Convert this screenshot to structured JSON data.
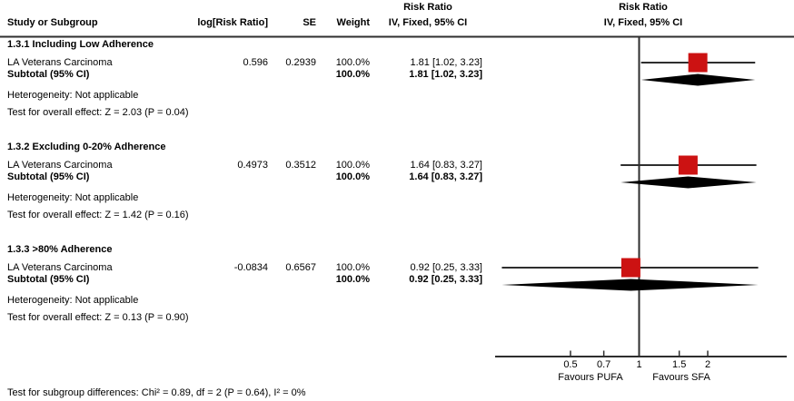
{
  "colors": {
    "marker": "#CC1212",
    "line": "#2E2E2E",
    "text": "#000000"
  },
  "header": {
    "study": "Study or Subgroup",
    "log_rr": "log[Risk Ratio]",
    "se": "SE",
    "weight": "Weight",
    "effect_col_title_line1": "Risk Ratio",
    "effect_col_title_line2": "IV, Fixed, 95% CI",
    "plot_col_title_line1": "Risk Ratio",
    "plot_col_title_line2": "IV, Fixed, 95% CI"
  },
  "sections": [
    {
      "heading": "1.3.1 Including Low Adherence",
      "study": {
        "name": "LA Veterans Carcinoma",
        "log_rr": "0.596",
        "se": "0.2939",
        "weight": "100.0%",
        "ci": "1.81 [1.02, 3.23]"
      },
      "subtotal": {
        "label": "Subtotal (95% CI)",
        "weight": "100.0%",
        "ci": "1.81 [1.02, 3.23]"
      },
      "heterogeneity": "Heterogeneity: Not applicable",
      "overall_effect": "Test for overall effect: Z = 2.03 (P = 0.04)"
    },
    {
      "heading": "1.3.2 Excluding 0-20% Adherence",
      "study": {
        "name": "LA Veterans Carcinoma",
        "log_rr": "0.4973",
        "se": "0.3512",
        "weight": "100.0%",
        "ci": "1.64 [0.83, 3.27]"
      },
      "subtotal": {
        "label": "Subtotal (95% CI)",
        "weight": "100.0%",
        "ci": "1.64 [0.83, 3.27]"
      },
      "heterogeneity": "Heterogeneity: Not applicable",
      "overall_effect": "Test for overall effect: Z = 1.42 (P = 0.16)"
    },
    {
      "heading": "1.3.3 >80% Adherence",
      "study": {
        "name": "LA Veterans Carcinoma",
        "log_rr": "-0.0834",
        "se": "0.6567",
        "weight": "100.0%",
        "ci": "0.92 [0.25, 3.33]"
      },
      "subtotal": {
        "label": "Subtotal (95% CI)",
        "weight": "100.0%",
        "ci": "0.92 [0.25, 3.33]"
      },
      "heterogeneity": "Heterogeneity: Not applicable",
      "overall_effect": "Test for overall effect: Z = 0.13 (P = 0.90)"
    }
  ],
  "footnote": "Test for subgroup differences: Chi² = 0.89, df = 2 (P = 0.64), I² = 0%",
  "axis": {
    "tick_labels": [
      "0.5",
      "0.7",
      "1",
      "1.5",
      "2"
    ],
    "tick_values": [
      0.5,
      0.7,
      1,
      1.5,
      2
    ],
    "favours_left": "Favours PUFA",
    "favours_right": "Favours SFA"
  },
  "chart_data": {
    "type": "scatter",
    "variant": "forest-plot (meta-analysis, RevMan style)",
    "title": "Risk Ratio",
    "effect_model": "IV, Fixed, 95% CI",
    "x_scale": "log",
    "x_axis_ticks": [
      0.5,
      0.7,
      1,
      1.5,
      2
    ],
    "null_line": 1,
    "xlabel_left": "Favours PUFA",
    "xlabel_right": "Favours SFA",
    "groups": [
      {
        "name": "1.3.1 Including Low Adherence",
        "study": {
          "label": "LA Veterans Carcinoma",
          "log_rr": 0.596,
          "se": 0.2939,
          "weight_pct": 100.0,
          "rr": 1.81,
          "ci_low": 1.02,
          "ci_high": 3.23
        },
        "subtotal": {
          "rr": 1.81,
          "ci_low": 1.02,
          "ci_high": 3.23,
          "weight_pct": 100.0,
          "z": 2.03,
          "p": 0.04
        },
        "heterogeneity": "Not applicable"
      },
      {
        "name": "1.3.2 Excluding 0-20% Adherence",
        "study": {
          "label": "LA Veterans Carcinoma",
          "log_rr": 0.4973,
          "se": 0.3512,
          "weight_pct": 100.0,
          "rr": 1.64,
          "ci_low": 0.83,
          "ci_high": 3.27
        },
        "subtotal": {
          "rr": 1.64,
          "ci_low": 0.83,
          "ci_high": 3.27,
          "weight_pct": 100.0,
          "z": 1.42,
          "p": 0.16
        },
        "heterogeneity": "Not applicable"
      },
      {
        "name": "1.3.3 >80% Adherence",
        "study": {
          "label": "LA Veterans Carcinoma",
          "log_rr": -0.0834,
          "se": 0.6567,
          "weight_pct": 100.0,
          "rr": 0.92,
          "ci_low": 0.25,
          "ci_high": 3.33
        },
        "subtotal": {
          "rr": 0.92,
          "ci_low": 0.25,
          "ci_high": 3.33,
          "weight_pct": 100.0,
          "z": 0.13,
          "p": 0.9
        },
        "heterogeneity": "Not applicable"
      }
    ],
    "subgroup_differences": {
      "chi2": 0.89,
      "df": 2,
      "p": 0.64,
      "i2_pct": 0
    }
  }
}
